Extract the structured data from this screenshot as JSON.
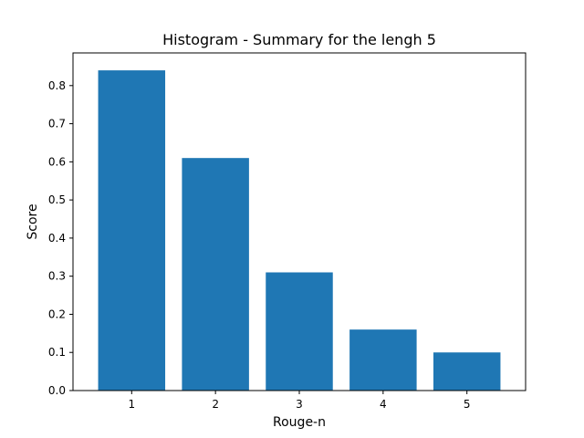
{
  "chart_data": {
    "type": "bar",
    "title": "Histogram - Summary for the lengh 5",
    "xlabel": "Rouge-n",
    "ylabel": "Score",
    "categories": [
      "1",
      "2",
      "3",
      "4",
      "5"
    ],
    "values": [
      0.84,
      0.61,
      0.31,
      0.16,
      0.1
    ],
    "xlim": [
      0.3,
      5.7
    ],
    "ylim": [
      0,
      0.8857
    ],
    "yticks": [
      0.0,
      0.1,
      0.2,
      0.3,
      0.4,
      0.5,
      0.6,
      0.7,
      0.8
    ],
    "ytick_labels": [
      "0.0",
      "0.1",
      "0.2",
      "0.3",
      "0.4",
      "0.5",
      "0.6",
      "0.7",
      "0.8"
    ],
    "bar_color": "#1f77b4",
    "grid": false,
    "legend": "none"
  }
}
